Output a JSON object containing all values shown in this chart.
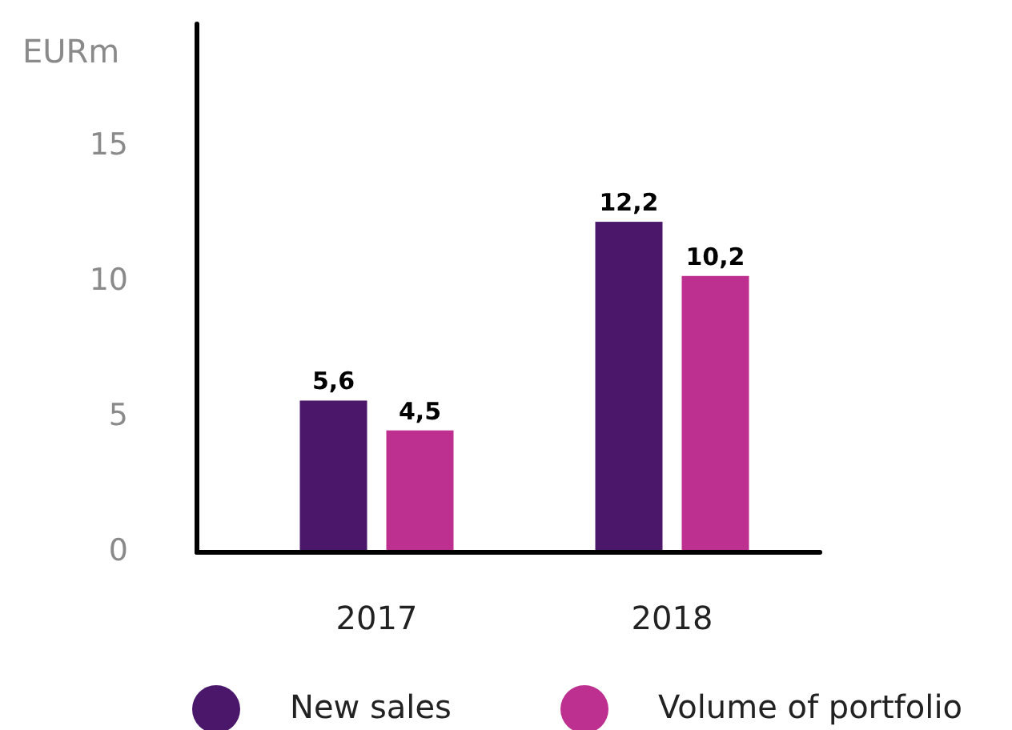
{
  "chart_data": {
    "type": "bar",
    "ylabel": "EURm",
    "categories": [
      "2017",
      "2018"
    ],
    "series": [
      {
        "name": "New sales",
        "color": "#4a176b",
        "values": [
          5.6,
          12.2
        ],
        "value_labels": [
          "5,6",
          "12,2"
        ]
      },
      {
        "name": "Volume of portfolio",
        "color": "#bd3090",
        "values": [
          4.5,
          10.2
        ],
        "value_labels": [
          "4,5",
          "10,2"
        ]
      }
    ],
    "ylim": [
      0,
      19.5
    ],
    "yticks": [
      0,
      5,
      10,
      15
    ],
    "grid": false,
    "legend": "bottom"
  }
}
